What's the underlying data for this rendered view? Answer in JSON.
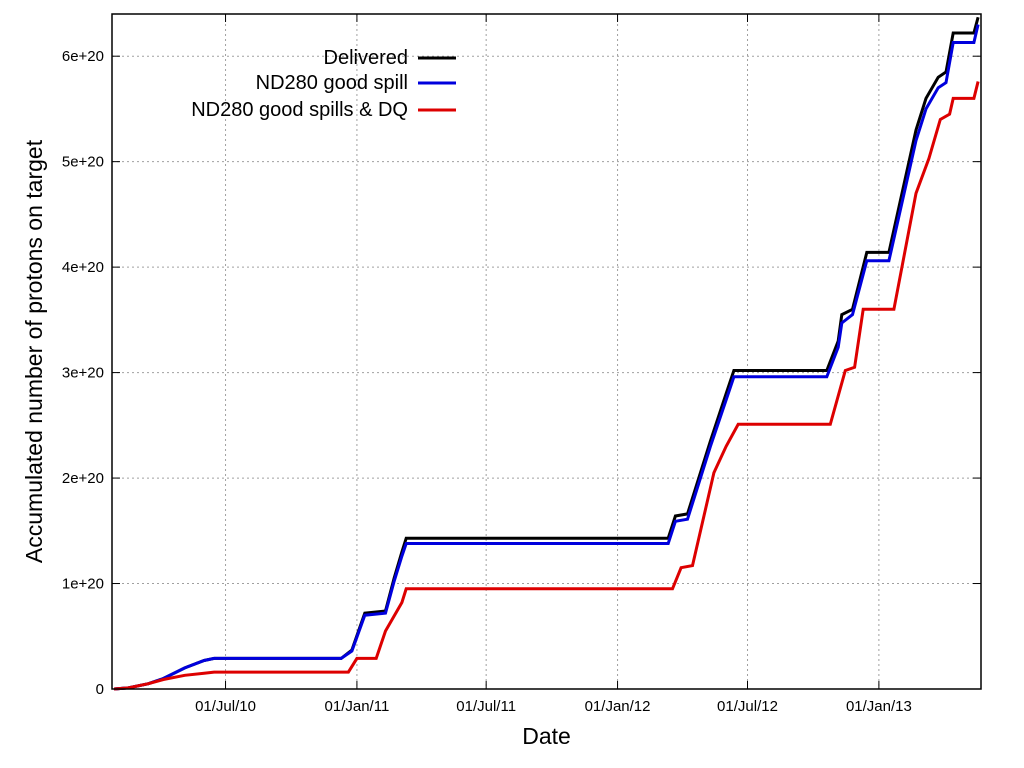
{
  "chart_data": {
    "type": "line",
    "xlabel": "Date",
    "ylabel": "Accumulated number of protons on target",
    "x_axis": {
      "range": [
        "2010-01-23",
        "2013-05-24"
      ],
      "ticks": [
        {
          "date": "2010-07-01",
          "label": "01/Jul/10"
        },
        {
          "date": "2011-01-01",
          "label": "01/Jan/11"
        },
        {
          "date": "2011-07-01",
          "label": "01/Jul/11"
        },
        {
          "date": "2012-01-01",
          "label": "01/Jan/12"
        },
        {
          "date": "2012-07-01",
          "label": "01/Jul/12"
        },
        {
          "date": "2013-01-01",
          "label": "01/Jan/13"
        }
      ]
    },
    "y_axis": {
      "range": [
        0,
        6.4e+20
      ],
      "ticks": [
        {
          "value": 0,
          "label": "0"
        },
        {
          "value": 1e+20,
          "label": "1e+20"
        },
        {
          "value": 2e+20,
          "label": "2e+20"
        },
        {
          "value": 3e+20,
          "label": "3e+20"
        },
        {
          "value": 4e+20,
          "label": "4e+20"
        },
        {
          "value": 5e+20,
          "label": "5e+20"
        },
        {
          "value": 6e+20,
          "label": "6e+20"
        }
      ]
    },
    "grid": true,
    "legend_position": "top-left",
    "series": [
      {
        "name": "Delivered",
        "color": "#000000",
        "points": [
          [
            "2010-01-26",
            0
          ],
          [
            "2010-02-15",
            1e+18
          ],
          [
            "2010-03-15",
            5e+18
          ],
          [
            "2010-04-05",
            1e+19
          ],
          [
            "2010-05-05",
            2e+19
          ],
          [
            "2010-06-01",
            2.7e+19
          ],
          [
            "2010-06-15",
            2.9e+19
          ],
          [
            "2010-12-10",
            2.9e+19
          ],
          [
            "2010-12-25",
            3.7e+19
          ],
          [
            "2011-01-12",
            7.2e+19
          ],
          [
            "2011-02-10",
            7.4e+19
          ],
          [
            "2011-02-22",
            1.05e+20
          ],
          [
            "2011-03-05",
            1.3e+20
          ],
          [
            "2011-03-11",
            1.43e+20
          ],
          [
            "2012-03-12",
            1.43e+20
          ],
          [
            "2012-03-22",
            1.64e+20
          ],
          [
            "2012-04-08",
            1.66e+20
          ],
          [
            "2012-05-10",
            2.35e+20
          ],
          [
            "2012-06-01",
            2.8e+20
          ],
          [
            "2012-06-12",
            3.02e+20
          ],
          [
            "2012-10-20",
            3.02e+20
          ],
          [
            "2012-11-05",
            3.3e+20
          ],
          [
            "2012-11-10",
            3.55e+20
          ],
          [
            "2012-11-25",
            3.6e+20
          ],
          [
            "2012-12-15",
            4.14e+20
          ],
          [
            "2013-01-15",
            4.14e+20
          ],
          [
            "2013-02-22",
            5.3e+20
          ],
          [
            "2013-03-08",
            5.6e+20
          ],
          [
            "2013-03-25",
            5.8e+20
          ],
          [
            "2013-04-05",
            5.85e+20
          ],
          [
            "2013-04-15",
            6.22e+20
          ],
          [
            "2013-05-14",
            6.22e+20
          ],
          [
            "2013-05-20",
            6.37e+20
          ]
        ]
      },
      {
        "name": "ND280 good spill",
        "color": "#0000dd",
        "points": [
          [
            "2010-01-26",
            0
          ],
          [
            "2010-02-15",
            1e+18
          ],
          [
            "2010-03-15",
            5e+18
          ],
          [
            "2010-04-05",
            1e+19
          ],
          [
            "2010-05-05",
            2e+19
          ],
          [
            "2010-06-01",
            2.7e+19
          ],
          [
            "2010-06-15",
            2.9e+19
          ],
          [
            "2010-12-10",
            2.9e+19
          ],
          [
            "2010-12-25",
            3.6e+19
          ],
          [
            "2011-01-12",
            7e+19
          ],
          [
            "2011-02-10",
            7.2e+19
          ],
          [
            "2011-02-22",
            1.02e+20
          ],
          [
            "2011-03-05",
            1.26e+20
          ],
          [
            "2011-03-11",
            1.38e+20
          ],
          [
            "2012-03-12",
            1.38e+20
          ],
          [
            "2012-03-22",
            1.59e+20
          ],
          [
            "2012-04-08",
            1.61e+20
          ],
          [
            "2012-05-10",
            2.3e+20
          ],
          [
            "2012-06-01",
            2.74e+20
          ],
          [
            "2012-06-12",
            2.96e+20
          ],
          [
            "2012-10-20",
            2.96e+20
          ],
          [
            "2012-11-05",
            3.24e+20
          ],
          [
            "2012-11-10",
            3.47e+20
          ],
          [
            "2012-11-25",
            3.55e+20
          ],
          [
            "2012-12-15",
            4.06e+20
          ],
          [
            "2013-01-15",
            4.06e+20
          ],
          [
            "2013-02-22",
            5.2e+20
          ],
          [
            "2013-03-08",
            5.5e+20
          ],
          [
            "2013-03-25",
            5.7e+20
          ],
          [
            "2013-04-05",
            5.75e+20
          ],
          [
            "2013-04-15",
            6.13e+20
          ],
          [
            "2013-05-14",
            6.13e+20
          ],
          [
            "2013-05-20",
            6.3e+20
          ]
        ]
      },
      {
        "name": "ND280 good spills & DQ",
        "color": "#dd0000",
        "points": [
          [
            "2010-01-26",
            0
          ],
          [
            "2010-02-15",
            1e+18
          ],
          [
            "2010-03-15",
            5e+18
          ],
          [
            "2010-04-05",
            9e+18
          ],
          [
            "2010-05-05",
            1.3e+19
          ],
          [
            "2010-06-01",
            1.5e+19
          ],
          [
            "2010-06-15",
            1.6e+19
          ],
          [
            "2010-12-20",
            1.6e+19
          ],
          [
            "2011-01-01",
            2.9e+19
          ],
          [
            "2011-01-28",
            2.9e+19
          ],
          [
            "2011-02-10",
            5.5e+19
          ],
          [
            "2011-03-05",
            8.2e+19
          ],
          [
            "2011-03-11",
            9.5e+19
          ],
          [
            "2012-03-18",
            9.5e+19
          ],
          [
            "2012-03-30",
            1.15e+20
          ],
          [
            "2012-04-15",
            1.17e+20
          ],
          [
            "2012-05-15",
            2.05e+20
          ],
          [
            "2012-06-01",
            2.3e+20
          ],
          [
            "2012-06-18",
            2.51e+20
          ],
          [
            "2012-10-25",
            2.51e+20
          ],
          [
            "2012-11-15",
            3.02e+20
          ],
          [
            "2012-11-28",
            3.05e+20
          ],
          [
            "2012-12-10",
            3.6e+20
          ],
          [
            "2013-01-22",
            3.6e+20
          ],
          [
            "2013-02-22",
            4.7e+20
          ],
          [
            "2013-03-12",
            5.03e+20
          ],
          [
            "2013-03-28",
            5.4e+20
          ],
          [
            "2013-04-10",
            5.45e+20
          ],
          [
            "2013-04-15",
            5.6e+20
          ],
          [
            "2013-05-14",
            5.6e+20
          ],
          [
            "2013-05-20",
            5.76e+20
          ]
        ]
      }
    ]
  }
}
